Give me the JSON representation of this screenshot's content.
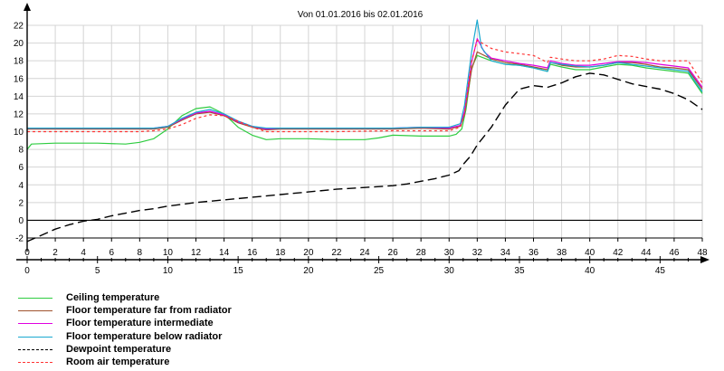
{
  "chart_data": {
    "type": "line",
    "title": "Von 01.01.2016 bis 02.01.2016",
    "xlabel": "",
    "ylabel": "",
    "xlim": [
      0,
      48
    ],
    "ylim": [
      -2,
      22
    ],
    "x_ticks_top": [
      "0",
      "2",
      "4",
      "6",
      "8",
      "10",
      "12",
      "14",
      "16",
      "18",
      "20",
      "22",
      "24",
      "26",
      "28",
      "30",
      "32",
      "34",
      "36",
      "38",
      "40",
      "42",
      "44",
      "46",
      "48"
    ],
    "x_ticks_bottom": [
      "0",
      "5",
      "10",
      "15",
      "20",
      "25",
      "30",
      "35",
      "40",
      "45"
    ],
    "y_ticks": [
      "22",
      "20",
      "18",
      "16",
      "14",
      "12",
      "10",
      "8",
      "6",
      "4",
      "2",
      "0",
      "-2"
    ],
    "series": [
      {
        "name": "Ceiling temperature",
        "color": "#2ecc40",
        "dash": "solid",
        "points": [
          [
            0,
            8.0
          ],
          [
            0.3,
            8.6
          ],
          [
            2,
            8.7
          ],
          [
            5,
            8.7
          ],
          [
            7,
            8.6
          ],
          [
            8,
            8.8
          ],
          [
            9,
            9.2
          ],
          [
            10,
            10.3
          ],
          [
            11,
            11.8
          ],
          [
            12,
            12.6
          ],
          [
            13,
            12.8
          ],
          [
            14,
            12.0
          ],
          [
            15,
            10.5
          ],
          [
            16,
            9.6
          ],
          [
            17,
            9.1
          ],
          [
            18,
            9.2
          ],
          [
            20,
            9.2
          ],
          [
            22,
            9.1
          ],
          [
            24,
            9.1
          ],
          [
            25,
            9.3
          ],
          [
            26,
            9.6
          ],
          [
            28,
            9.5
          ],
          [
            30,
            9.5
          ],
          [
            30.5,
            9.7
          ],
          [
            30.9,
            10.3
          ],
          [
            31.2,
            12.5
          ],
          [
            31.6,
            17.2
          ],
          [
            32,
            18.6
          ],
          [
            33,
            18.0
          ],
          [
            34,
            17.6
          ],
          [
            35,
            17.5
          ],
          [
            36,
            17.2
          ],
          [
            37,
            16.8
          ],
          [
            37.2,
            17.6
          ],
          [
            38,
            17.3
          ],
          [
            39,
            17.0
          ],
          [
            40,
            17.0
          ],
          [
            41,
            17.3
          ],
          [
            42,
            17.6
          ],
          [
            43,
            17.5
          ],
          [
            44,
            17.2
          ],
          [
            45,
            17.0
          ],
          [
            46,
            16.8
          ],
          [
            47,
            16.6
          ],
          [
            48,
            14.3
          ]
        ]
      },
      {
        "name": "Floor temperature far from radiator",
        "color": "#a0522d",
        "dash": "solid",
        "points": [
          [
            0,
            10.3
          ],
          [
            4,
            10.3
          ],
          [
            8,
            10.3
          ],
          [
            9,
            10.3
          ],
          [
            10,
            10.5
          ],
          [
            11,
            11.3
          ],
          [
            12,
            12.0
          ],
          [
            13,
            12.2
          ],
          [
            14,
            11.8
          ],
          [
            15,
            11.0
          ],
          [
            16,
            10.5
          ],
          [
            17,
            10.2
          ],
          [
            18,
            10.3
          ],
          [
            22,
            10.3
          ],
          [
            26,
            10.3
          ],
          [
            28,
            10.4
          ],
          [
            30,
            10.3
          ],
          [
            30.8,
            10.6
          ],
          [
            31.1,
            12.0
          ],
          [
            31.6,
            17.0
          ],
          [
            32,
            19.0
          ],
          [
            33,
            18.2
          ],
          [
            34,
            17.8
          ],
          [
            35,
            17.6
          ],
          [
            36,
            17.3
          ],
          [
            37,
            17.0
          ],
          [
            37.2,
            17.8
          ],
          [
            38,
            17.5
          ],
          [
            39,
            17.3
          ],
          [
            40,
            17.3
          ],
          [
            41,
            17.5
          ],
          [
            42,
            17.8
          ],
          [
            43,
            17.8
          ],
          [
            44,
            17.6
          ],
          [
            45,
            17.3
          ],
          [
            46,
            17.2
          ],
          [
            47,
            17.0
          ],
          [
            48,
            14.8
          ]
        ]
      },
      {
        "name": "Floor temperature intermediate",
        "color": "#e000e0",
        "dash": "solid",
        "points": [
          [
            0,
            10.4
          ],
          [
            4,
            10.4
          ],
          [
            8,
            10.4
          ],
          [
            9,
            10.4
          ],
          [
            10,
            10.6
          ],
          [
            11,
            11.4
          ],
          [
            12,
            12.1
          ],
          [
            13,
            12.3
          ],
          [
            14,
            11.9
          ],
          [
            15,
            11.1
          ],
          [
            16,
            10.6
          ],
          [
            17,
            10.3
          ],
          [
            18,
            10.4
          ],
          [
            22,
            10.4
          ],
          [
            26,
            10.4
          ],
          [
            28,
            10.5
          ],
          [
            30,
            10.4
          ],
          [
            30.8,
            10.7
          ],
          [
            31.1,
            12.3
          ],
          [
            31.6,
            17.8
          ],
          [
            32,
            20.5
          ],
          [
            32.5,
            19.0
          ],
          [
            33,
            18.3
          ],
          [
            34,
            18.0
          ],
          [
            35,
            17.7
          ],
          [
            36,
            17.5
          ],
          [
            37,
            17.2
          ],
          [
            37.2,
            18.0
          ],
          [
            38,
            17.7
          ],
          [
            39,
            17.5
          ],
          [
            40,
            17.5
          ],
          [
            41,
            17.7
          ],
          [
            42,
            17.9
          ],
          [
            43,
            17.9
          ],
          [
            44,
            17.8
          ],
          [
            45,
            17.6
          ],
          [
            46,
            17.4
          ],
          [
            47,
            17.2
          ],
          [
            48,
            15.0
          ]
        ]
      },
      {
        "name": "Floor temperature below radiator",
        "color": "#1aa9d1",
        "dash": "solid",
        "points": [
          [
            0,
            10.4
          ],
          [
            4,
            10.4
          ],
          [
            8,
            10.4
          ],
          [
            9,
            10.4
          ],
          [
            10,
            10.6
          ],
          [
            11,
            11.5
          ],
          [
            12,
            12.2
          ],
          [
            13,
            12.5
          ],
          [
            14,
            12.0
          ],
          [
            15,
            11.2
          ],
          [
            16,
            10.6
          ],
          [
            17,
            10.4
          ],
          [
            18,
            10.4
          ],
          [
            22,
            10.4
          ],
          [
            26,
            10.4
          ],
          [
            28,
            10.5
          ],
          [
            30,
            10.5
          ],
          [
            30.8,
            10.9
          ],
          [
            31.1,
            13.0
          ],
          [
            31.6,
            19.0
          ],
          [
            32,
            22.6
          ],
          [
            32.3,
            19.5
          ],
          [
            33,
            18.0
          ],
          [
            34,
            17.6
          ],
          [
            35,
            17.5
          ],
          [
            36,
            17.2
          ],
          [
            37,
            16.8
          ],
          [
            37.2,
            17.8
          ],
          [
            38,
            17.6
          ],
          [
            39,
            17.4
          ],
          [
            40,
            17.3
          ],
          [
            41,
            17.5
          ],
          [
            42,
            17.8
          ],
          [
            43,
            17.6
          ],
          [
            44,
            17.4
          ],
          [
            45,
            17.2
          ],
          [
            46,
            17.0
          ],
          [
            47,
            16.8
          ],
          [
            48,
            14.5
          ]
        ]
      },
      {
        "name": "Dewpoint temperature",
        "color": "#000000",
        "dash": "long",
        "points": [
          [
            0,
            -2.4
          ],
          [
            1,
            -1.7
          ],
          [
            2,
            -1.0
          ],
          [
            3,
            -0.5
          ],
          [
            4,
            -0.1
          ],
          [
            5,
            0.1
          ],
          [
            6,
            0.5
          ],
          [
            7,
            0.8
          ],
          [
            8,
            1.1
          ],
          [
            9,
            1.3
          ],
          [
            10,
            1.6
          ],
          [
            12,
            2.0
          ],
          [
            14,
            2.3
          ],
          [
            16,
            2.6
          ],
          [
            18,
            2.9
          ],
          [
            20,
            3.2
          ],
          [
            22,
            3.5
          ],
          [
            24,
            3.7
          ],
          [
            26,
            3.9
          ],
          [
            27,
            4.1
          ],
          [
            28,
            4.4
          ],
          [
            29,
            4.7
          ],
          [
            30,
            5.1
          ],
          [
            30.7,
            5.6
          ],
          [
            31,
            6.3
          ],
          [
            31.5,
            7.2
          ],
          [
            32,
            8.5
          ],
          [
            33,
            10.5
          ],
          [
            34,
            13.0
          ],
          [
            35,
            14.8
          ],
          [
            36,
            15.2
          ],
          [
            37,
            15.0
          ],
          [
            38,
            15.5
          ],
          [
            39,
            16.2
          ],
          [
            40,
            16.6
          ],
          [
            41,
            16.4
          ],
          [
            42,
            15.9
          ],
          [
            43,
            15.4
          ],
          [
            44,
            15.1
          ],
          [
            45,
            14.8
          ],
          [
            46,
            14.3
          ],
          [
            47,
            13.6
          ],
          [
            48,
            12.5
          ]
        ]
      },
      {
        "name": "Room air temperature",
        "color": "#ff3333",
        "dash": "short",
        "points": [
          [
            0,
            10.0
          ],
          [
            4,
            10.0
          ],
          [
            8,
            10.0
          ],
          [
            9,
            10.1
          ],
          [
            10,
            10.3
          ],
          [
            11,
            10.8
          ],
          [
            12,
            11.5
          ],
          [
            13,
            11.9
          ],
          [
            14,
            11.8
          ],
          [
            15,
            11.2
          ],
          [
            16,
            10.5
          ],
          [
            17,
            10.0
          ],
          [
            18,
            10.0
          ],
          [
            22,
            10.0
          ],
          [
            26,
            10.1
          ],
          [
            28,
            10.1
          ],
          [
            30,
            10.1
          ],
          [
            30.8,
            10.5
          ],
          [
            31.1,
            12.0
          ],
          [
            31.6,
            18.0
          ],
          [
            32,
            20.3
          ],
          [
            33,
            19.4
          ],
          [
            34,
            19.0
          ],
          [
            35,
            18.8
          ],
          [
            36,
            18.6
          ],
          [
            37,
            17.8
          ],
          [
            37.2,
            18.4
          ],
          [
            38,
            18.2
          ],
          [
            39,
            18.0
          ],
          [
            40,
            18.0
          ],
          [
            41,
            18.2
          ],
          [
            42,
            18.6
          ],
          [
            43,
            18.5
          ],
          [
            44,
            18.2
          ],
          [
            45,
            18.0
          ],
          [
            46,
            18.0
          ],
          [
            47,
            18.0
          ],
          [
            48,
            15.5
          ]
        ]
      }
    ]
  }
}
